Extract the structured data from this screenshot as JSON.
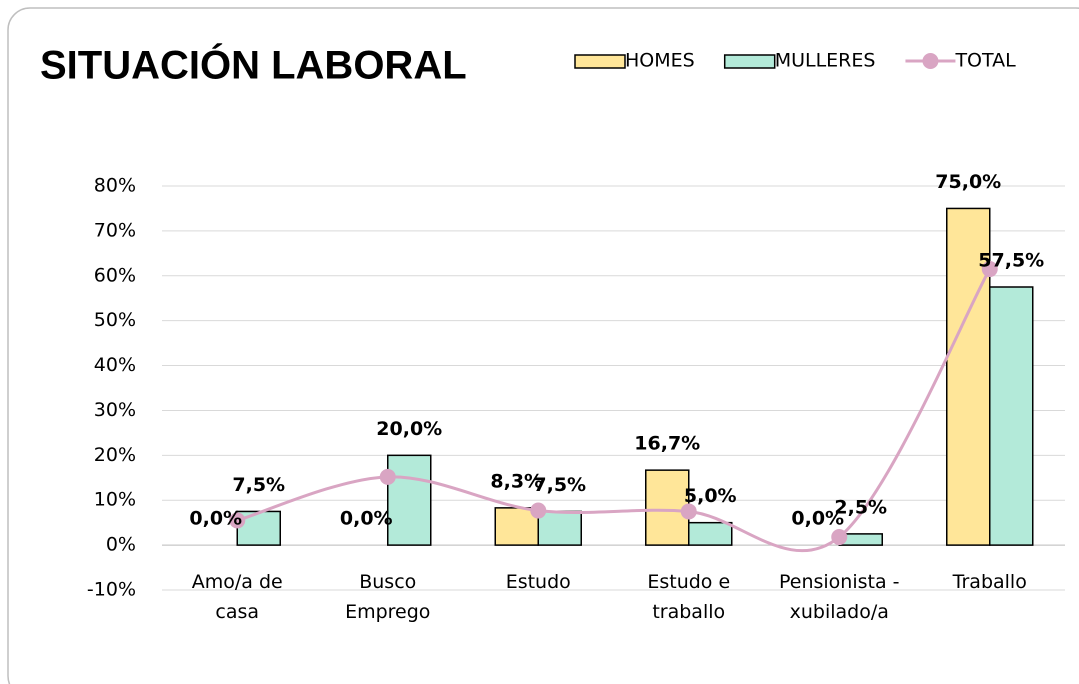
{
  "chart_data": {
    "type": "bar-line",
    "title": "SITUACIÓN LABORAL",
    "categories": [
      "Amo/a de casa",
      "Busco Emprego",
      "Estudo",
      "Estudo e traballo",
      "Pensionista - xubilado/a",
      "Traballo"
    ],
    "series": [
      {
        "name": "HOMES",
        "color": "#ffe699",
        "values": [
          0,
          0,
          8.3,
          16.7,
          0,
          75
        ],
        "value_labels": [
          "0,0%",
          "0,0%",
          "8,3%",
          "16,7%",
          "0,0%",
          "75,0%"
        ]
      },
      {
        "name": "MULLERES",
        "color": "#b3ead9",
        "values": [
          7.5,
          20,
          7.5,
          5,
          2.5,
          57.5
        ],
        "value_labels": [
          "7,5%",
          "20,0%",
          "7,5%",
          "5,0%",
          "2,5%",
          "57,5%"
        ]
      },
      {
        "name": "TOTAL",
        "type": "line",
        "color": "#d9a5c3",
        "values": [
          5.5,
          15.2,
          7.7,
          7.5,
          1.8,
          61.5
        ]
      }
    ],
    "ylim": [
      -10,
      80
    ],
    "yticks": [
      {
        "value": -10,
        "label": "-10%"
      },
      {
        "value": 0,
        "label": "0%"
      },
      {
        "value": 10,
        "label": "10%"
      },
      {
        "value": 20,
        "label": "20%"
      },
      {
        "value": 30,
        "label": "30%"
      },
      {
        "value": 40,
        "label": "40%"
      },
      {
        "value": 50,
        "label": "50%"
      },
      {
        "value": 60,
        "label": "60%"
      },
      {
        "value": 70,
        "label": "70%"
      },
      {
        "value": 80,
        "label": "80%"
      }
    ],
    "grid": true,
    "legend": "top-right"
  }
}
